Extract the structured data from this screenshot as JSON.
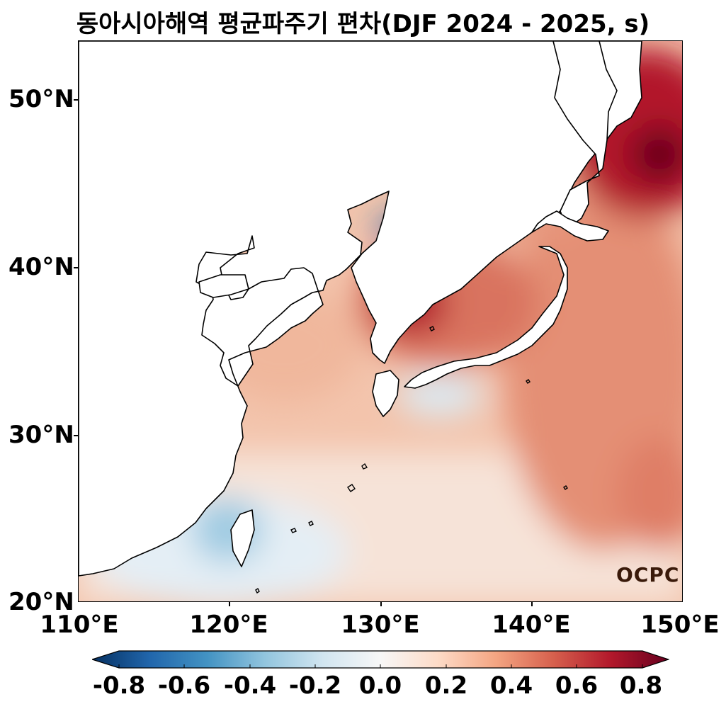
{
  "title": "동아시아해역 평균파주기 편차(DJF 2024 - 2025, s)",
  "map": {
    "lon_range": [
      110,
      150
    ],
    "lat_range": [
      20,
      53.5
    ],
    "field": "mean wave period anomaly",
    "colormap": "RdBu_r"
  },
  "y_ticks": [
    "50°N",
    "40°N",
    "30°N",
    "20°N"
  ],
  "x_ticks": [
    "110°E",
    "120°E",
    "130°E",
    "140°E",
    "150°E"
  ],
  "colorbar": {
    "min": -0.8,
    "max": 0.8,
    "extend": "both",
    "tick_labels": [
      "-0.8",
      "-0.6",
      "-0.4",
      "-0.2",
      "0.0",
      "0.2",
      "0.4",
      "0.6",
      "0.8"
    ],
    "colors": [
      "#053061",
      "#2166ac",
      "#4393c3",
      "#92c5de",
      "#d1e5f0",
      "#f7f7f7",
      "#fddbc7",
      "#f4a582",
      "#d6604d",
      "#b2182b",
      "#67001f"
    ]
  },
  "logo": "OCPC"
}
